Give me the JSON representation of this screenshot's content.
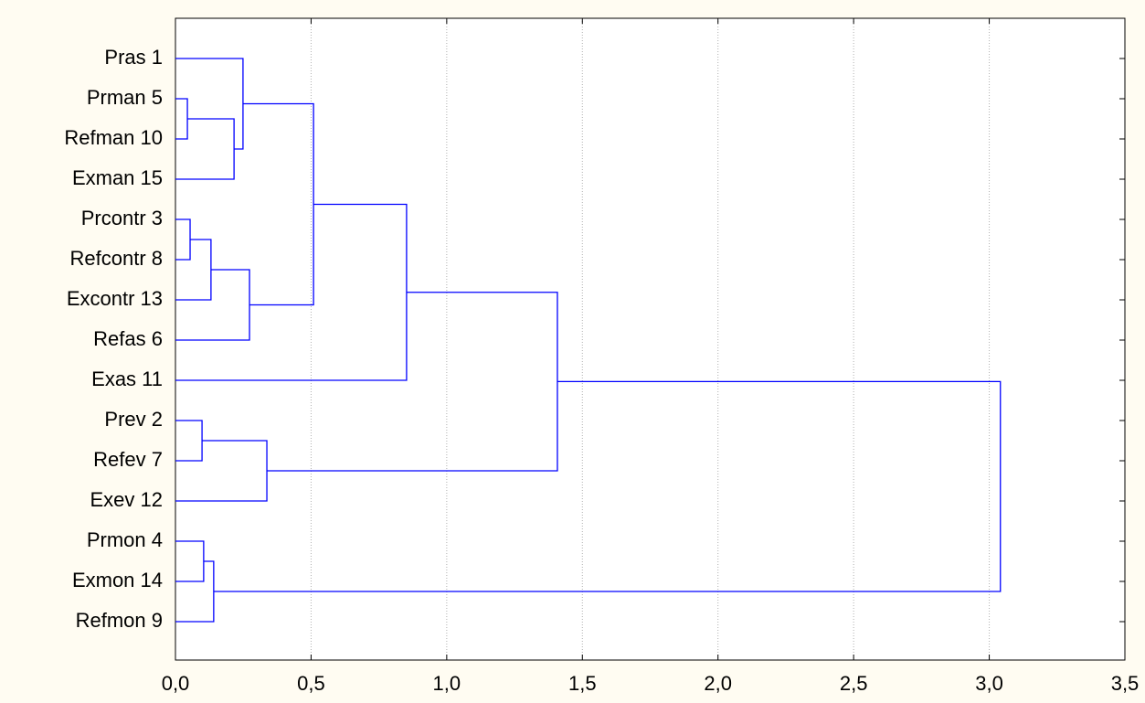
{
  "chart_data": {
    "type": "dendrogram",
    "orientation": "horizontal",
    "color": "#0000ff",
    "grid": true,
    "xlim": [
      0,
      3.5
    ],
    "xticks": [
      {
        "value": 0,
        "label": "0,0"
      },
      {
        "value": 0.5,
        "label": "0,5"
      },
      {
        "value": 1,
        "label": "1,0"
      },
      {
        "value": 1.5,
        "label": "1,5"
      },
      {
        "value": 2,
        "label": "2,0"
      },
      {
        "value": 2.5,
        "label": "2,5"
      },
      {
        "value": 3,
        "label": "3,0"
      },
      {
        "value": 3.5,
        "label": "3,5"
      }
    ],
    "tree": {
      "height": 3.041,
      "children": [
        {
          "height": 1.408,
          "children": [
            {
              "height": 0.852,
              "children": [
                {
                  "height": 0.509,
                  "children": [
                    {
                      "height": 0.249,
                      "children": [
                        "Pras 1",
                        {
                          "height": 0.216,
                          "children": [
                            {
                              "height": 0.044,
                              "children": [
                                "Prman 5",
                                "Refman 10"
                              ]
                            },
                            "Exman 15"
                          ]
                        }
                      ]
                    },
                    {
                      "height": 0.273,
                      "children": [
                        {
                          "height": 0.131,
                          "children": [
                            {
                              "height": 0.054,
                              "children": [
                                "Prcontr 3",
                                "Refcontr 8"
                              ]
                            },
                            "Excontr 13"
                          ]
                        },
                        "Refas 6"
                      ]
                    }
                  ]
                },
                "Exas 11"
              ]
            },
            {
              "height": 0.337,
              "children": [
                {
                  "height": 0.098,
                  "children": [
                    "Prev 2",
                    "Refev 7"
                  ]
                },
                "Exev 12"
              ]
            }
          ]
        },
        {
          "height": 0.141,
          "children": [
            {
              "height": 0.104,
              "children": [
                "Prmon 4",
                "Exmon 14"
              ]
            },
            "Refmon 9"
          ]
        }
      ]
    }
  }
}
